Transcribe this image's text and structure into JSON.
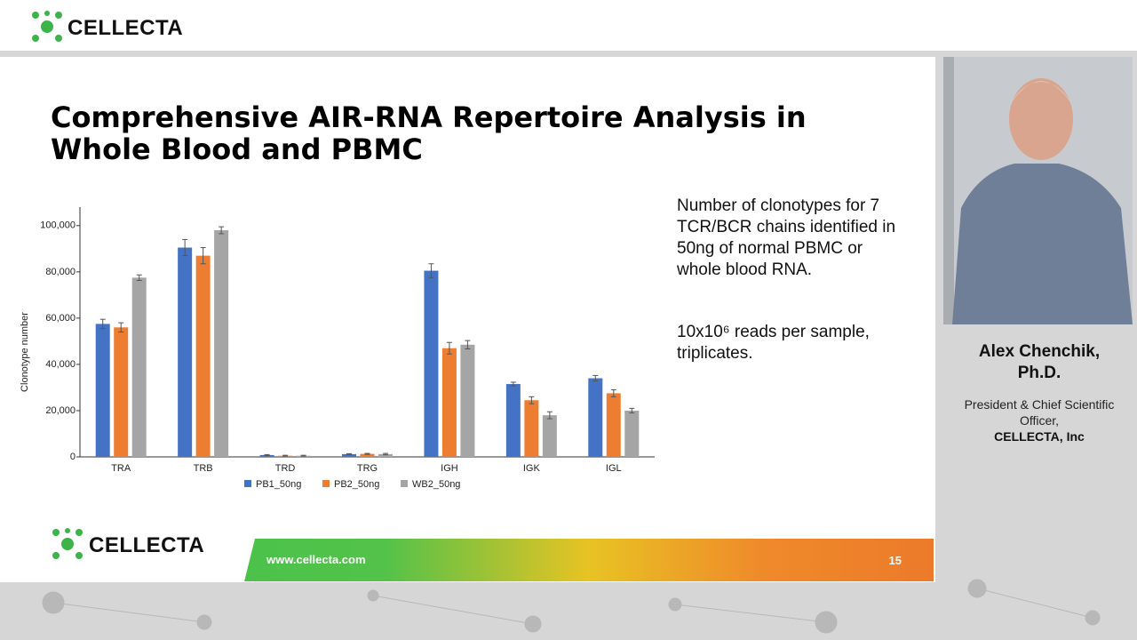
{
  "header": {
    "brand": "CELLECTA"
  },
  "slide": {
    "title": "Comprehensive AIR-RNA Repertoire Analysis in Whole Blood and PBMC",
    "description": "Number of clonotypes for 7 TCR/BCR chains identified in 50ng of normal PBMC or whole blood RNA.",
    "note": "10x10⁶ reads per sample, triplicates.",
    "footer_brand": "CELLECTA",
    "footer_url": "www.cellecta.com",
    "page_number": "15"
  },
  "speaker": {
    "name": "Alex Chenchik, Ph.D.",
    "role": "President & Chief Scientific Officer,",
    "company": "CELLECTA, Inc"
  },
  "chart_data": {
    "type": "bar",
    "y_label": "Clonotype number",
    "categories": [
      "TRA",
      "TRB",
      "TRD",
      "TRG",
      "IGH",
      "IGK",
      "IGL"
    ],
    "series": [
      {
        "name": "PB1_50ng",
        "color": "#4472c4",
        "values": [
          57500,
          90500,
          800,
          1200,
          80500,
          31500,
          34000
        ],
        "errors": [
          2000,
          3500,
          200,
          200,
          3000,
          800,
          1200
        ]
      },
      {
        "name": "PB2_50ng",
        "color": "#ed7d31",
        "values": [
          56000,
          87000,
          500,
          1300,
          47000,
          24500,
          27500
        ],
        "errors": [
          2000,
          3500,
          200,
          200,
          2500,
          1500,
          1500
        ]
      },
      {
        "name": "WB2_50ng",
        "color": "#a5a5a5",
        "values": [
          77500,
          98000,
          500,
          1200,
          48500,
          18000,
          20000
        ],
        "errors": [
          1200,
          1500,
          200,
          300,
          1800,
          1500,
          1000
        ]
      }
    ],
    "ylim": [
      0,
      108000
    ],
    "yticks": [
      0,
      {
        "value": 20000,
        "label": "20,000"
      },
      {
        "value": 40000,
        "label": "40,000"
      },
      {
        "value": 60000,
        "label": "60,000"
      },
      {
        "value": 80000,
        "label": "80,000"
      },
      {
        "value": 100000,
        "label": "100,000"
      }
    ],
    "legend": "bottom"
  }
}
